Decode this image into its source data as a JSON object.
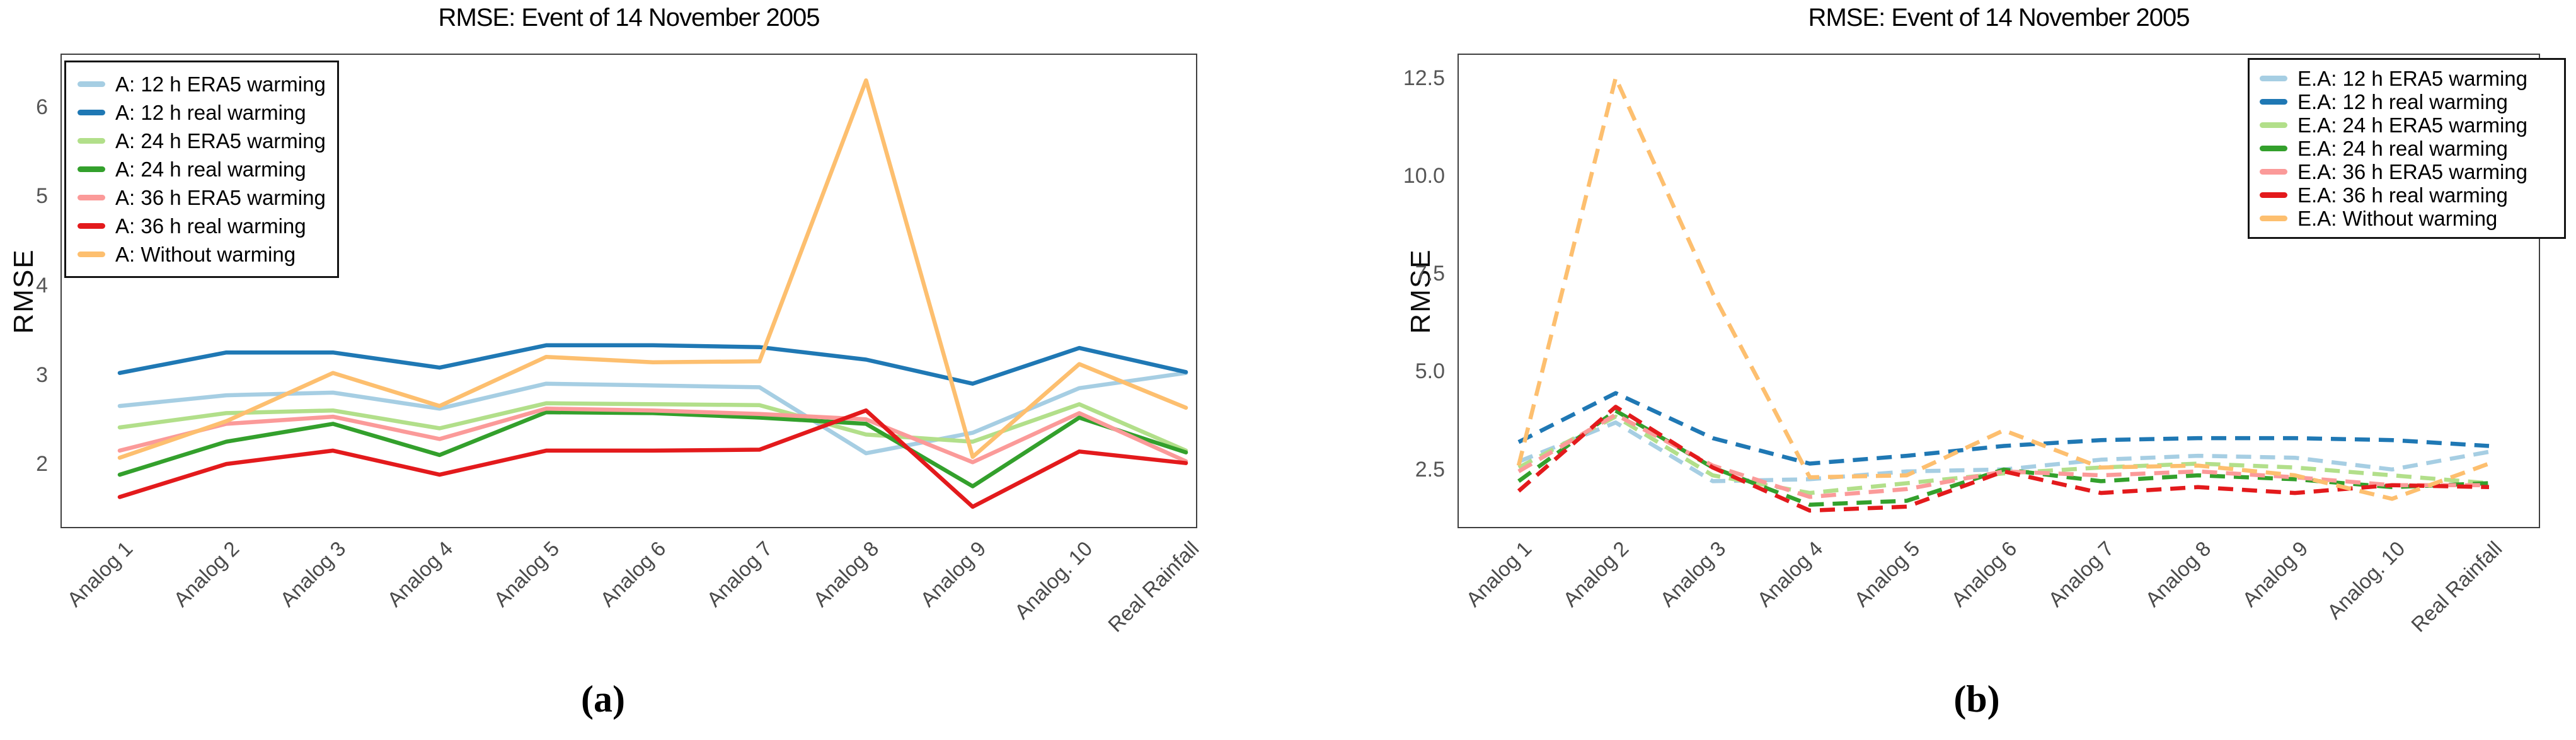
{
  "page": {
    "background": "#ffffff"
  },
  "chart_data": [
    {
      "id": "a",
      "type": "line",
      "panel_label": "(a)",
      "title": "RMSE: Event of 14 November 2005",
      "ylabel": "RMSE",
      "line_dash": "solid",
      "legend_position": "top-left",
      "grid": false,
      "categories": [
        "Analog 1",
        "Analog 2",
        "Analog 3",
        "Analog 4",
        "Analog 5",
        "Analog 6",
        "Analog 7",
        "Analog 8",
        "Analog 9",
        "Analog. 10",
        "Real Rainfall"
      ],
      "ylim": [
        1.28,
        6.6
      ],
      "yticks": {
        "values": [
          6,
          5,
          4,
          3,
          2
        ],
        "labels": [
          "6",
          "5",
          "4",
          "3",
          "2"
        ]
      },
      "series": [
        {
          "name": "A: 12 h ERA5 warming",
          "color": "#a6cee3",
          "values": [
            2.65,
            2.77,
            2.8,
            2.62,
            2.9,
            2.88,
            2.86,
            2.12,
            2.35,
            2.85,
            3.02
          ]
        },
        {
          "name": "A: 12 h real warming",
          "color": "#1f78b4",
          "values": [
            3.02,
            3.25,
            3.25,
            3.08,
            3.33,
            3.33,
            3.31,
            3.17,
            2.9,
            3.3,
            3.03
          ]
        },
        {
          "name": "A: 24 h ERA5 warming",
          "color": "#b2df8a",
          "values": [
            2.41,
            2.57,
            2.6,
            2.4,
            2.68,
            2.67,
            2.66,
            2.33,
            2.25,
            2.67,
            2.15
          ]
        },
        {
          "name": "A: 24 h real warming",
          "color": "#33a02c",
          "values": [
            1.88,
            2.25,
            2.45,
            2.1,
            2.58,
            2.57,
            2.52,
            2.45,
            1.75,
            2.52,
            2.13
          ]
        },
        {
          "name": "A: 36 h ERA5 warming",
          "color": "#fb9a99",
          "values": [
            2.15,
            2.45,
            2.53,
            2.28,
            2.62,
            2.6,
            2.56,
            2.5,
            2.02,
            2.57,
            2.03
          ]
        },
        {
          "name": "A: 36 h real warming",
          "color": "#e31a1c",
          "values": [
            1.63,
            2.0,
            2.15,
            1.88,
            2.15,
            2.15,
            2.16,
            2.6,
            1.52,
            2.14,
            2.01
          ]
        },
        {
          "name": "A: Without warming",
          "color": "#fdbf6f",
          "values": [
            2.07,
            2.48,
            3.02,
            2.65,
            3.2,
            3.14,
            3.15,
            6.3,
            2.08,
            3.12,
            2.63
          ]
        }
      ]
    },
    {
      "id": "b",
      "type": "line",
      "panel_label": "(b)",
      "title": "RMSE: Event of 14 November 2005",
      "ylabel": "RMSE",
      "line_dash": "dashed",
      "legend_position": "top-right",
      "grid": false,
      "categories": [
        "Analog 1",
        "Analog 2",
        "Analog 3",
        "Analog 4",
        "Analog 5",
        "Analog 6",
        "Analog 7",
        "Analog 8",
        "Analog 9",
        "Analog. 10",
        "Real Rainfall"
      ],
      "ylim": [
        1.0,
        13.12
      ],
      "yticks": {
        "values": [
          12.5,
          10.0,
          7.5,
          5.0,
          2.5
        ],
        "labels": [
          "12.5",
          "10.0",
          "7.5",
          "5.0",
          "2.5"
        ]
      },
      "series": [
        {
          "name": "E.A: 12 h ERA5 warming",
          "color": "#a6cee3",
          "values": [
            2.7,
            3.7,
            2.2,
            2.25,
            2.45,
            2.5,
            2.75,
            2.85,
            2.8,
            2.5,
            2.95
          ]
        },
        {
          "name": "E.A: 12 h real warming",
          "color": "#1f78b4",
          "values": [
            3.2,
            4.45,
            3.3,
            2.65,
            2.85,
            3.1,
            3.25,
            3.3,
            3.3,
            3.25,
            3.1
          ]
        },
        {
          "name": "E.A: 24 h ERA5 warming",
          "color": "#b2df8a",
          "values": [
            2.55,
            3.85,
            2.35,
            1.9,
            2.15,
            2.4,
            2.55,
            2.65,
            2.55,
            2.35,
            2.15
          ]
        },
        {
          "name": "E.A: 24 h real warming",
          "color": "#33a02c",
          "values": [
            2.2,
            4.0,
            2.55,
            1.6,
            1.7,
            2.5,
            2.2,
            2.35,
            2.25,
            2.05,
            2.15
          ]
        },
        {
          "name": "E.A: 36 h ERA5 warming",
          "color": "#fb9a99",
          "values": [
            2.45,
            3.9,
            2.6,
            1.8,
            2.0,
            2.45,
            2.35,
            2.45,
            2.3,
            2.1,
            2.1
          ]
        },
        {
          "name": "E.A: 36 h real warming",
          "color": "#e31a1c",
          "values": [
            1.95,
            4.1,
            2.55,
            1.45,
            1.55,
            2.45,
            1.9,
            2.05,
            1.9,
            2.1,
            2.05
          ]
        },
        {
          "name": "E.A: Without warming",
          "color": "#fdbf6f",
          "values": [
            2.6,
            12.5,
            7.0,
            2.3,
            2.35,
            3.5,
            2.55,
            2.6,
            2.35,
            1.75,
            2.65
          ]
        }
      ]
    }
  ]
}
